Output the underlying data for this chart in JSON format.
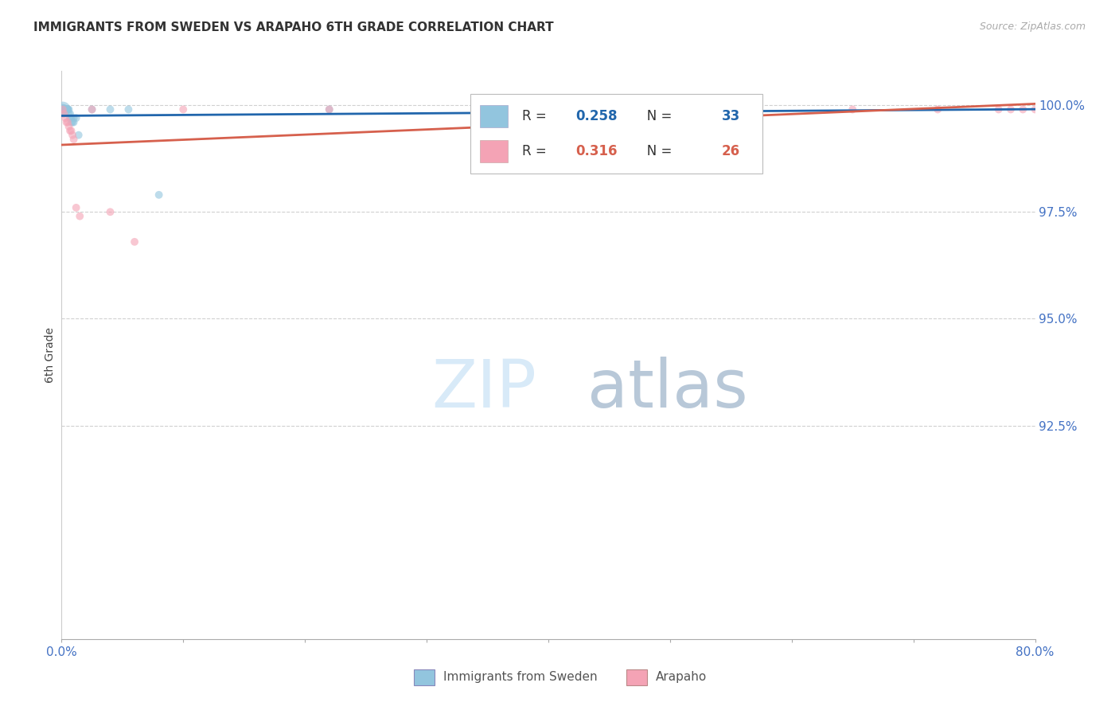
{
  "title": "IMMIGRANTS FROM SWEDEN VS ARAPAHO 6TH GRADE CORRELATION CHART",
  "source": "Source: ZipAtlas.com",
  "ylabel": "6th Grade",
  "legend1": "Immigrants from Sweden",
  "legend2": "Arapaho",
  "r_blue": 0.258,
  "n_blue": 33,
  "r_pink": 0.316,
  "n_pink": 26,
  "xlim": [
    0.0,
    0.8
  ],
  "ylim": [
    0.875,
    1.008
  ],
  "yticks": [
    0.925,
    0.95,
    0.975,
    1.0
  ],
  "ytick_labels": [
    "92.5%",
    "95.0%",
    "97.5%",
    "100.0%"
  ],
  "xticks": [
    0.0,
    0.1,
    0.2,
    0.3,
    0.4,
    0.5,
    0.6,
    0.7,
    0.8
  ],
  "xtick_labels": [
    "0.0%",
    "",
    "",
    "",
    "",
    "",
    "",
    "",
    "80.0%"
  ],
  "color_blue": "#92c5de",
  "color_pink": "#f4a3b5",
  "color_blue_line": "#2166ac",
  "color_pink_line": "#d6604d",
  "color_ytick": "#4472c4",
  "color_xtick": "#4472c4",
  "blue_x": [
    0.001,
    0.001,
    0.002,
    0.002,
    0.003,
    0.003,
    0.003,
    0.004,
    0.004,
    0.005,
    0.005,
    0.005,
    0.005,
    0.006,
    0.006,
    0.007,
    0.007,
    0.008,
    0.008,
    0.009,
    0.01,
    0.01,
    0.012,
    0.014,
    0.025,
    0.04,
    0.055,
    0.08,
    0.22,
    0.35,
    0.36,
    0.38,
    0.4
  ],
  "blue_y": [
    0.999,
    0.999,
    0.999,
    0.999,
    0.999,
    0.999,
    0.999,
    0.999,
    0.999,
    0.999,
    0.999,
    0.999,
    0.999,
    0.999,
    0.998,
    0.998,
    0.997,
    0.997,
    0.996,
    0.996,
    0.997,
    0.996,
    0.997,
    0.993,
    0.999,
    0.999,
    0.999,
    0.979,
    0.999,
    0.999,
    0.999,
    0.999,
    0.999
  ],
  "blue_sizes": [
    200,
    100,
    80,
    60,
    50,
    50,
    50,
    50,
    50,
    50,
    50,
    50,
    50,
    50,
    50,
    50,
    50,
    50,
    50,
    50,
    50,
    50,
    50,
    50,
    50,
    50,
    50,
    50,
    50,
    50,
    50,
    50,
    50
  ],
  "pink_x": [
    0.001,
    0.002,
    0.003,
    0.004,
    0.005,
    0.006,
    0.007,
    0.008,
    0.009,
    0.01,
    0.012,
    0.015,
    0.025,
    0.04,
    0.06,
    0.1,
    0.22,
    0.35,
    0.45,
    0.55,
    0.65,
    0.72,
    0.77,
    0.78,
    0.79,
    0.8
  ],
  "pink_y": [
    0.999,
    0.998,
    0.997,
    0.996,
    0.996,
    0.995,
    0.994,
    0.994,
    0.993,
    0.992,
    0.976,
    0.974,
    0.999,
    0.975,
    0.968,
    0.999,
    0.999,
    0.999,
    0.999,
    0.999,
    0.999,
    0.999,
    0.999,
    0.999,
    0.999,
    0.999
  ],
  "pink_sizes": [
    50,
    50,
    50,
    50,
    50,
    50,
    50,
    50,
    50,
    50,
    50,
    50,
    50,
    50,
    50,
    50,
    50,
    50,
    50,
    50,
    50,
    50,
    50,
    50,
    50,
    50
  ],
  "watermark_zip": "ZIP",
  "watermark_atlas": "atlas",
  "background_color": "#ffffff",
  "grid_color": "#d0d0d0",
  "grid_style": "--"
}
